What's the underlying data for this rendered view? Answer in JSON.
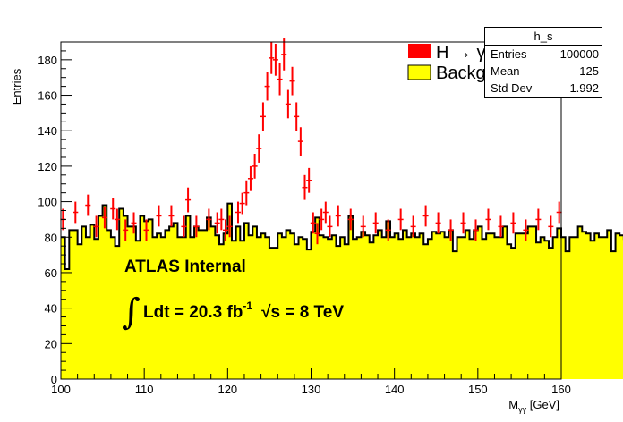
{
  "chart_data": {
    "type": "bar",
    "xlabel_main": "M",
    "xlabel_sub": "γγ",
    "xlabel_unit": " [GeV]",
    "ylabel": "Entries",
    "xlim": [
      100,
      160
    ],
    "ylim": [
      0,
      190
    ],
    "xticks": [
      100,
      110,
      120,
      130,
      140,
      150,
      160
    ],
    "yticks": [
      0,
      20,
      40,
      60,
      80,
      100,
      120,
      140,
      160,
      180
    ],
    "bin_width": 0.5,
    "bin_start": 100,
    "background_values": [
      80,
      62,
      84,
      84,
      76,
      86,
      80,
      87,
      79,
      92,
      98,
      84,
      80,
      75,
      96,
      92,
      86,
      86,
      78,
      92,
      89,
      90,
      80,
      82,
      80,
      84,
      86,
      88,
      80,
      80,
      92,
      80,
      86,
      84,
      84,
      91,
      86,
      81,
      76,
      82,
      99,
      78,
      86,
      78,
      88,
      81,
      86,
      80,
      82,
      80,
      74,
      74,
      82,
      80,
      84,
      82,
      76,
      80,
      79,
      73,
      83,
      91,
      81,
      80,
      79,
      81,
      75,
      80,
      76,
      92,
      79,
      80,
      83,
      81,
      77,
      81,
      84,
      80,
      89,
      80,
      82,
      79,
      84,
      80,
      82,
      80,
      82,
      76,
      79,
      83,
      82,
      83,
      80,
      84,
      72,
      80,
      80,
      84,
      79,
      84,
      86,
      79,
      82,
      82,
      80,
      80,
      86,
      76,
      74,
      82,
      82,
      82,
      86,
      86,
      77,
      80,
      78,
      74,
      80,
      85,
      80,
      72,
      80,
      80,
      86,
      83,
      82,
      78,
      82,
      80,
      80,
      84,
      72,
      82,
      81,
      79,
      82,
      80,
      85,
      82,
      82,
      80,
      76,
      80,
      78,
      82,
      80,
      80,
      82,
      80,
      80,
      84,
      74,
      78,
      84,
      84,
      86,
      80,
      80,
      76,
      81,
      76,
      87,
      80,
      80,
      84,
      83,
      87,
      80,
      80,
      81,
      82,
      79,
      84,
      78,
      78,
      79,
      82,
      80,
      76,
      82,
      80,
      82,
      88,
      82,
      80,
      82,
      84,
      76,
      80,
      81,
      82,
      73,
      81,
      82,
      80,
      82,
      82,
      84,
      80,
      82,
      80,
      82,
      80,
      76,
      74,
      80,
      84,
      82,
      87,
      81,
      79,
      80,
      82,
      86,
      79,
      52,
      80,
      78,
      82,
      78,
      82,
      78,
      76,
      82,
      84,
      80,
      82,
      82,
      80,
      76,
      82,
      78,
      76,
      81,
      80,
      80,
      84,
      79,
      76,
      76,
      80,
      78,
      84,
      80,
      82,
      84,
      84,
      62,
      72,
      80,
      82,
      76,
      84
    ],
    "signal_points": [
      [
        100.25,
        90,
        6
      ],
      [
        101.75,
        94,
        6
      ],
      [
        103.25,
        98,
        6
      ],
      [
        104.25,
        86,
        6
      ],
      [
        105.25,
        91,
        6
      ],
      [
        106.25,
        96,
        6
      ],
      [
        106.75,
        90,
        6
      ],
      [
        107.75,
        84,
        6
      ],
      [
        108.75,
        88,
        6
      ],
      [
        110.25,
        84,
        6
      ],
      [
        111.75,
        92,
        6
      ],
      [
        113.25,
        92,
        6
      ],
      [
        114.75,
        86,
        6
      ],
      [
        115.25,
        101,
        7
      ],
      [
        116.25,
        86,
        6
      ],
      [
        117.75,
        90,
        6
      ],
      [
        118.75,
        88,
        6
      ],
      [
        119.25,
        90,
        6
      ],
      [
        119.75,
        84,
        6
      ],
      [
        120.25,
        86,
        6
      ],
      [
        121.25,
        94,
        6
      ],
      [
        121.75,
        99,
        6
      ],
      [
        122.25,
        105,
        7
      ],
      [
        122.75,
        113,
        7
      ],
      [
        123.25,
        120,
        7
      ],
      [
        123.75,
        130,
        8
      ],
      [
        124.25,
        148,
        8
      ],
      [
        124.75,
        165,
        8
      ],
      [
        125.25,
        181,
        9
      ],
      [
        125.75,
        180,
        9
      ],
      [
        126.25,
        169,
        9
      ],
      [
        126.75,
        183,
        9
      ],
      [
        127.25,
        155,
        8
      ],
      [
        127.75,
        168,
        8
      ],
      [
        128.25,
        148,
        8
      ],
      [
        128.75,
        134,
        8
      ],
      [
        129.25,
        108,
        7
      ],
      [
        129.75,
        112,
        7
      ],
      [
        130.25,
        88,
        6
      ],
      [
        130.75,
        82,
        6
      ],
      [
        131.25,
        90,
        6
      ],
      [
        131.75,
        94,
        6
      ],
      [
        132.25,
        86,
        6
      ],
      [
        133.25,
        92,
        6
      ],
      [
        134.75,
        90,
        6
      ],
      [
        136.25,
        86,
        6
      ],
      [
        137.75,
        88,
        6
      ],
      [
        139.25,
        84,
        6
      ],
      [
        140.75,
        90,
        6
      ],
      [
        142.25,
        86,
        6
      ],
      [
        143.75,
        92,
        6
      ],
      [
        145.25,
        88,
        6
      ],
      [
        146.75,
        84,
        6
      ],
      [
        148.25,
        88,
        6
      ],
      [
        149.75,
        84,
        6
      ],
      [
        151.25,
        90,
        6
      ],
      [
        152.75,
        86,
        6
      ],
      [
        154.25,
        88,
        6
      ],
      [
        155.75,
        84,
        6
      ],
      [
        157.25,
        90,
        6
      ],
      [
        158.75,
        86,
        6
      ],
      [
        159.75,
        94,
        6
      ]
    ],
    "legend": [
      {
        "label": "H → γγ",
        "color": "#ff0000"
      },
      {
        "label": "Background",
        "color": "#ffff00"
      }
    ],
    "legend_position": "top-right",
    "annotations": {
      "line1": "ATLAS Internal",
      "integral": "∫",
      "lumi_main": "Ldt = 20.3 fb",
      "lumi_sup": "-1",
      "sqrt": "√s = 8 TeV"
    },
    "grid": false
  },
  "stats": {
    "title": "h_s",
    "rows": [
      {
        "key": "Entries",
        "value": "100000"
      },
      {
        "key": "Mean",
        "value": "125"
      },
      {
        "key": "Std Dev",
        "value": "1.992"
      }
    ]
  },
  "colors": {
    "background_fill": "#ffff00",
    "signal": "#ff0000",
    "axis": "#000000"
  }
}
